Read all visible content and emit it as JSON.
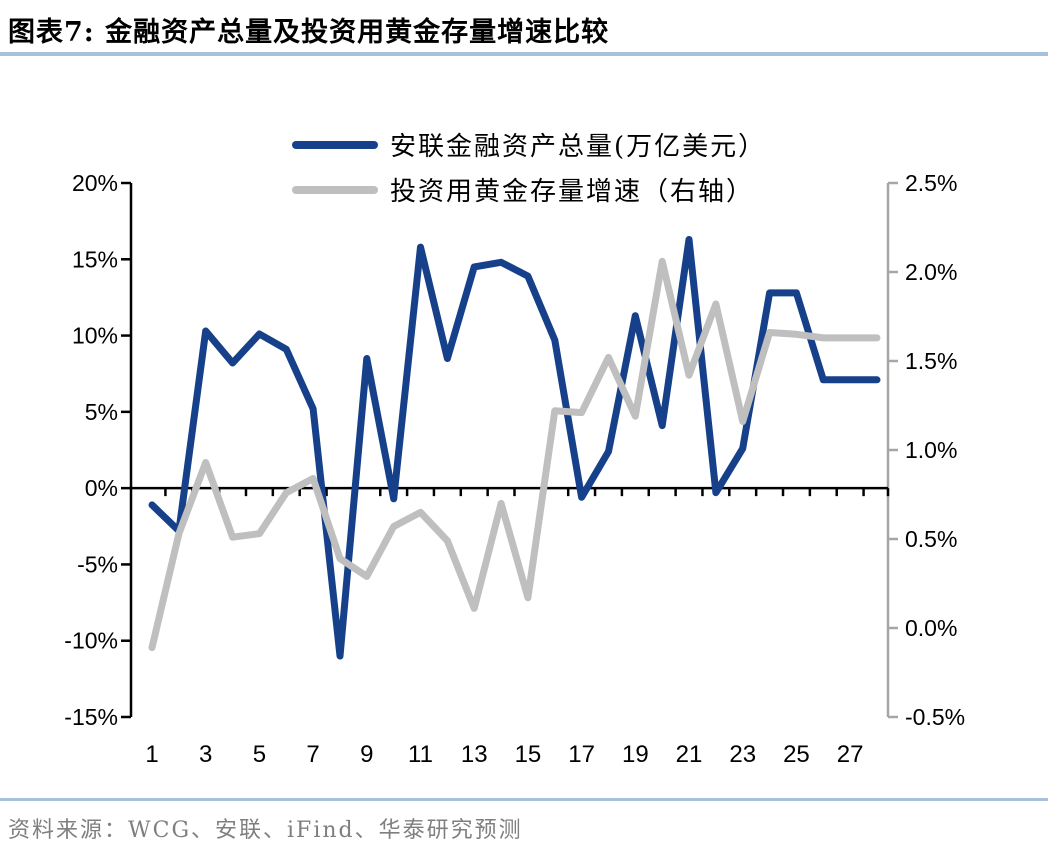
{
  "figure": {
    "title": "图表7:  金融资产总量及投资用黄金存量增速比较"
  },
  "legend": {
    "items": [
      {
        "label": "安联金融资产总量(万亿美元）",
        "color": "#16418a"
      },
      {
        "label": "投资用黄金存量增速（右轴）",
        "color": "#bfbfbf"
      }
    ]
  },
  "source": {
    "text": "资料来源：WCG、安联、iFind、华泰研究预测"
  },
  "colors": {
    "primary_line": "#16418a",
    "secondary_line": "#bfbfbf",
    "left_axis": "#000000",
    "right_axis": "#a6a6a6",
    "tick_label": "#000000",
    "rule_blue": "#a7c0dc",
    "source_gray": "#7f7f7f"
  },
  "chart_data": {
    "type": "line",
    "x": [
      1,
      2,
      3,
      4,
      5,
      6,
      7,
      8,
      9,
      10,
      11,
      12,
      13,
      14,
      15,
      16,
      17,
      18,
      19,
      20,
      21,
      22,
      23,
      24,
      25,
      26,
      27,
      28
    ],
    "x_tick_labels": [
      "1",
      "3",
      "5",
      "7",
      "9",
      "11",
      "13",
      "15",
      "17",
      "19",
      "21",
      "23",
      "25",
      "27"
    ],
    "series": [
      {
        "name": "安联金融资产总量(万亿美元）",
        "axis": "left",
        "color": "#16418a",
        "values": [
          -1.1,
          -2.8,
          10.3,
          8.2,
          10.1,
          9.1,
          5.2,
          -11.0,
          8.5,
          -0.7,
          15.8,
          8.5,
          14.5,
          14.8,
          13.9,
          9.7,
          -0.6,
          2.4,
          11.3,
          4.1,
          16.3,
          -0.3,
          2.6,
          12.8,
          12.8,
          7.1,
          7.1,
          7.1
        ]
      },
      {
        "name": "投资用黄金存量增速（右轴）",
        "axis": "right",
        "color": "#bfbfbf",
        "values": [
          -0.11,
          0.53,
          0.93,
          0.51,
          0.53,
          0.76,
          0.84,
          0.39,
          0.29,
          0.57,
          0.65,
          0.49,
          0.11,
          0.7,
          0.17,
          1.22,
          1.21,
          1.52,
          1.19,
          2.06,
          1.42,
          1.82,
          1.16,
          1.66,
          1.65,
          1.63,
          1.63,
          1.63
        ]
      }
    ],
    "left_axis": {
      "min": -15,
      "max": 20,
      "step": 5,
      "ticks": [
        "20%",
        "15%",
        "10%",
        "5%",
        "0%",
        "-5%",
        "-10%",
        "-15%"
      ]
    },
    "right_axis": {
      "min": -0.5,
      "max": 2.5,
      "step": 0.5,
      "ticks": [
        "2.5%",
        "2.0%",
        "1.5%",
        "1.0%",
        "0.5%",
        "0.0%",
        "-0.5%"
      ]
    },
    "grid": false,
    "legend_position": "top-center",
    "zero_baseline_left": true
  }
}
